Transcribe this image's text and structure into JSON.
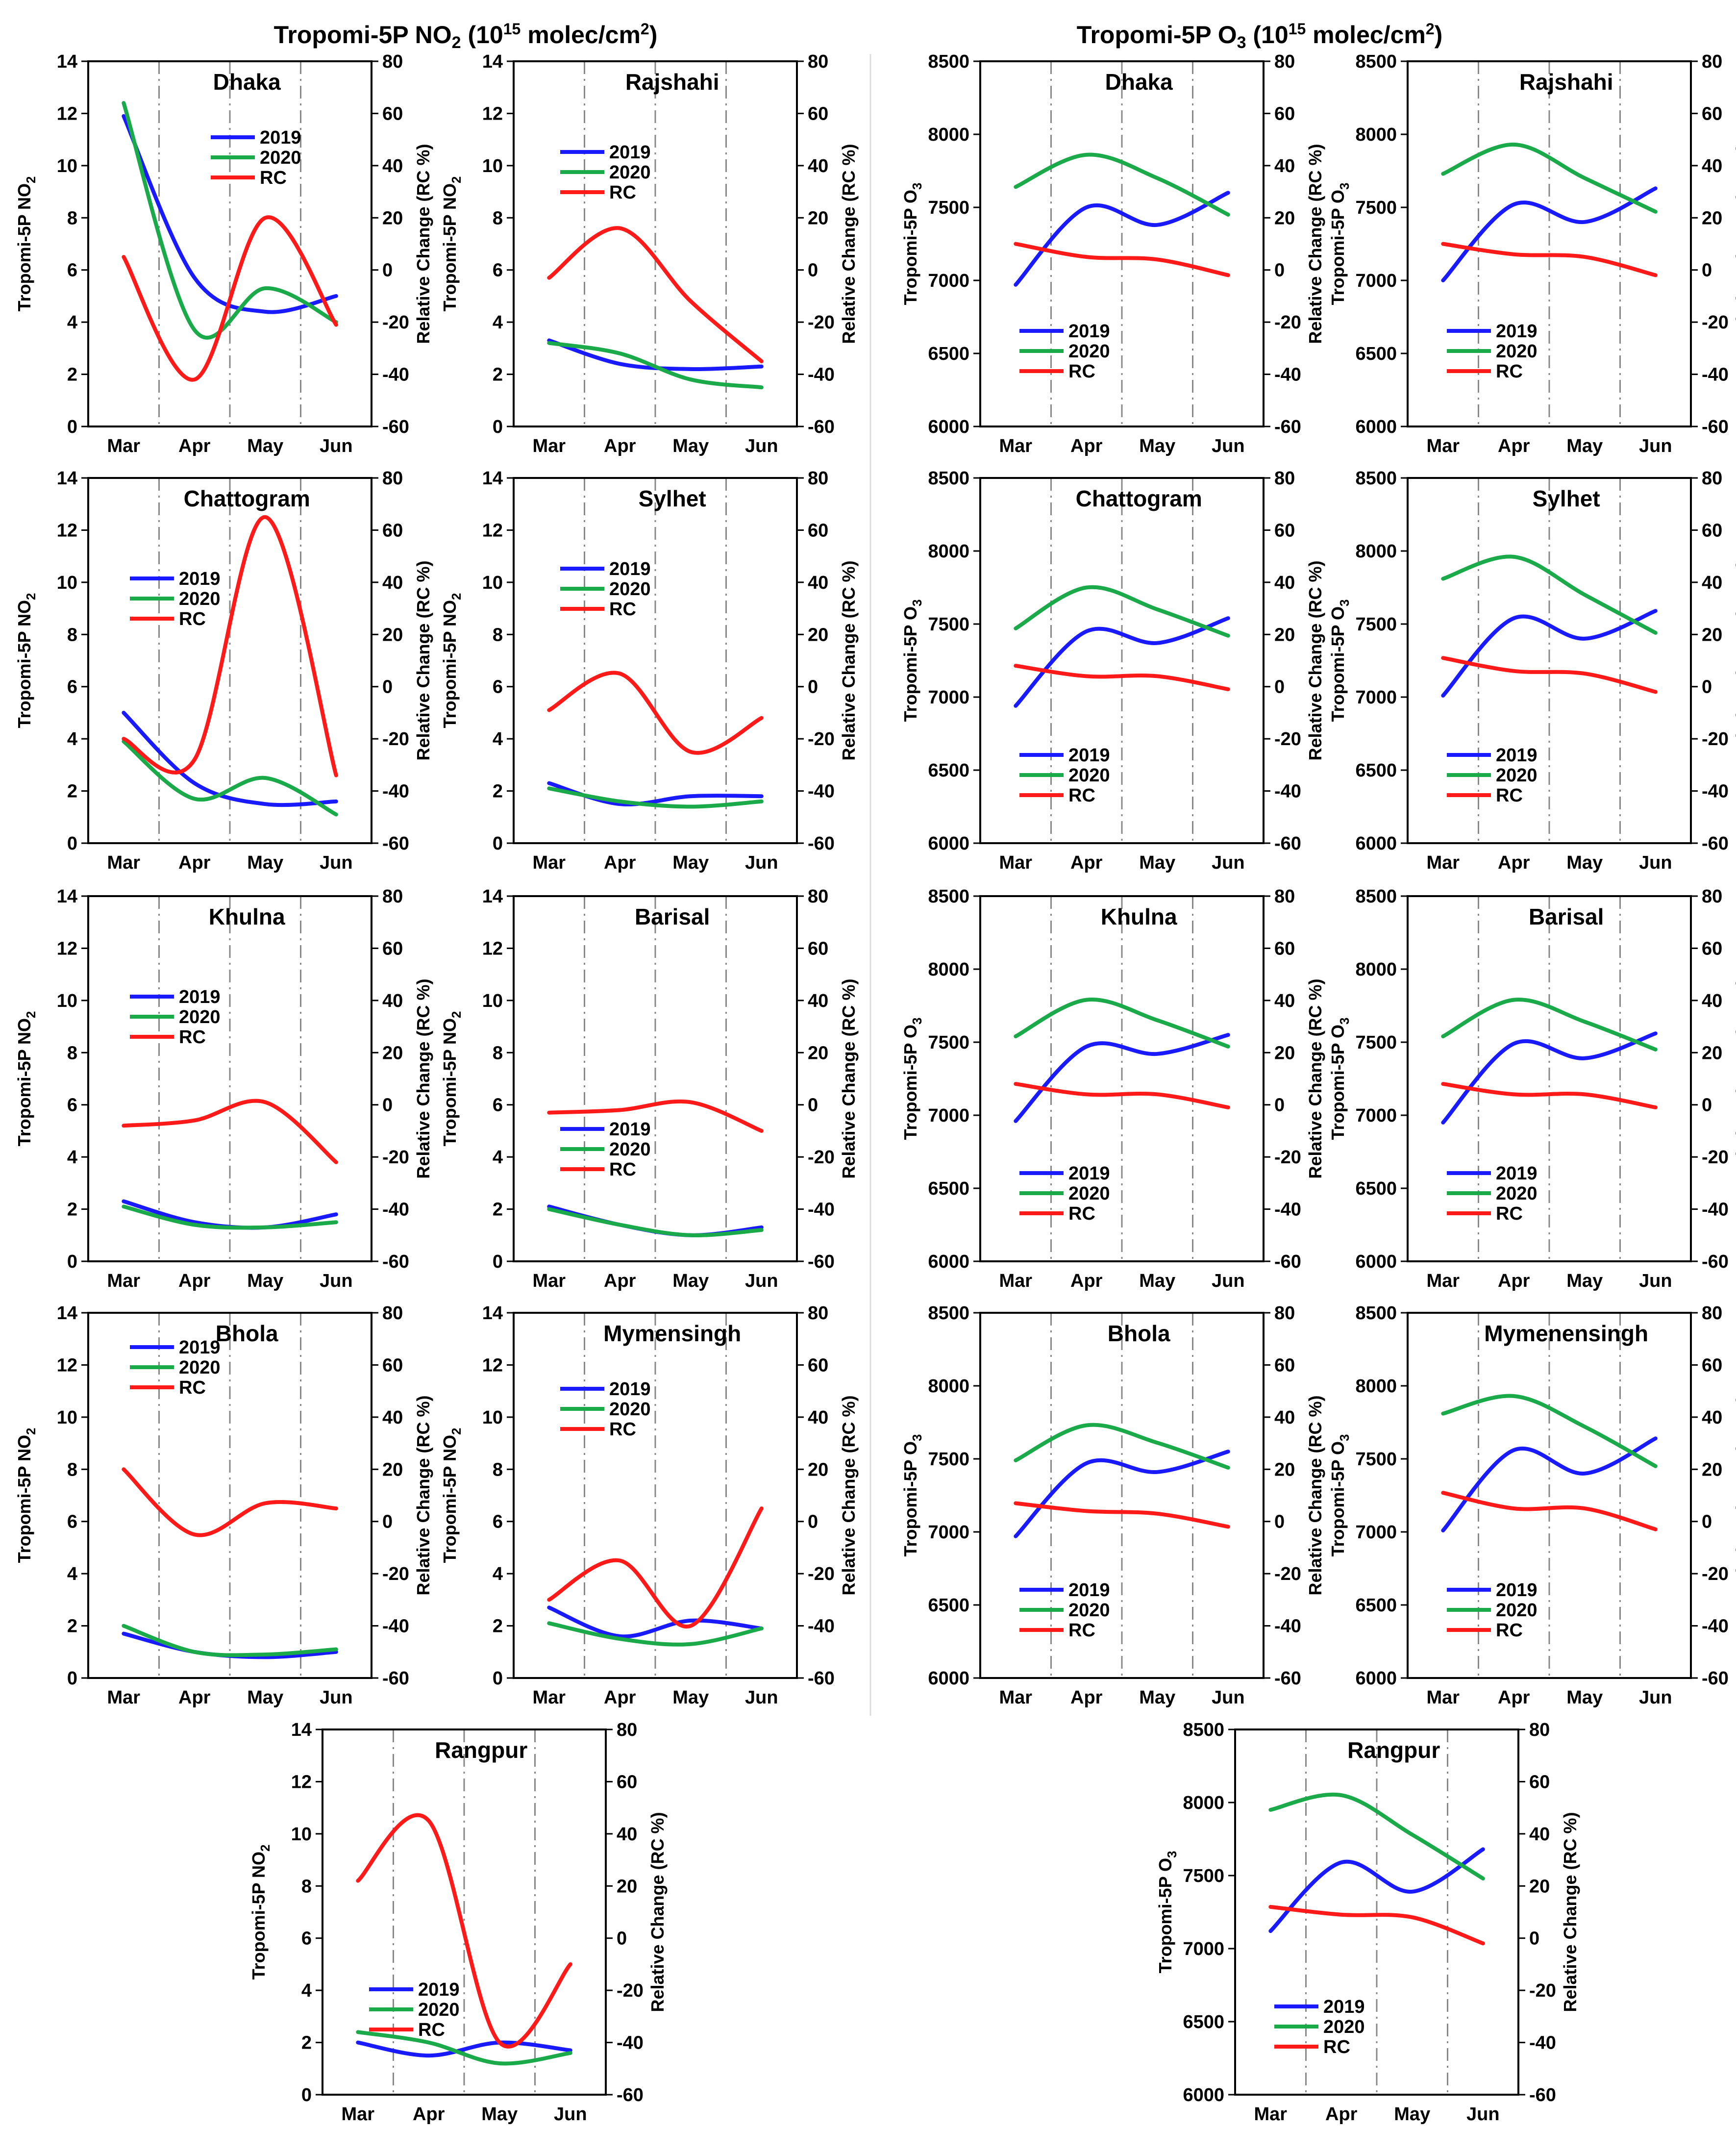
{
  "titles": {
    "no2": {
      "main": "Tropomi-5P NO",
      "sub": "2",
      "tail": " (10",
      "sup": "15",
      "unit": " molec/cm",
      "sup2": "2",
      "close": ")"
    },
    "o3": {
      "main": "Tropomi-5P O",
      "sub": "3",
      "tail": " (10",
      "sup": "15",
      "unit": " molec/cm",
      "sup2": "2",
      "close": ")"
    }
  },
  "axis_text": {
    "no2_ylabel": "Tropomi-5P NO",
    "no2_ylabel_sub": "2",
    "o3_ylabel": "Tropomi-5P O",
    "o3_ylabel_sub": "3",
    "rc_ylabel": "Relative Change (RC %)"
  },
  "months": [
    "Mar",
    "Apr",
    "May",
    "Jun"
  ],
  "legend_names": [
    "2019",
    "2020",
    "RC"
  ],
  "colors": {
    "2019": "#1a1aff",
    "2020": "#1aaa4a",
    "RC": "#ff1a1a"
  },
  "chart_data": [
    {
      "type": "line",
      "group": "no2",
      "title": "Dhaka",
      "x": [
        "Mar",
        "Apr",
        "May",
        "Jun"
      ],
      "ylim": [
        0,
        14
      ],
      "y2lim": [
        -60,
        80
      ],
      "series": [
        {
          "name": "2019",
          "values": [
            11.9,
            5.7,
            4.4,
            5.0
          ]
        },
        {
          "name": "2020",
          "values": [
            12.4,
            3.7,
            5.3,
            4.0
          ]
        },
        {
          "name": "RC",
          "axis": "right",
          "values": [
            5,
            -42,
            20,
            -21
          ]
        }
      ]
    },
    {
      "type": "line",
      "group": "no2",
      "title": "Rajshahi",
      "x": [
        "Mar",
        "Apr",
        "May",
        "Jun"
      ],
      "ylim": [
        0,
        14
      ],
      "y2lim": [
        -60,
        80
      ],
      "series": [
        {
          "name": "2019",
          "values": [
            3.3,
            2.4,
            2.2,
            2.3
          ]
        },
        {
          "name": "2020",
          "values": [
            3.2,
            2.8,
            1.8,
            1.5
          ]
        },
        {
          "name": "RC",
          "axis": "right",
          "values": [
            -3,
            16,
            -12,
            -35
          ]
        }
      ]
    },
    {
      "type": "line",
      "group": "no2",
      "title": "Chattogram",
      "x": [
        "Mar",
        "Apr",
        "May",
        "Jun"
      ],
      "ylim": [
        0,
        14
      ],
      "y2lim": [
        -60,
        80
      ],
      "series": [
        {
          "name": "2019",
          "values": [
            5.0,
            2.3,
            1.5,
            1.6
          ]
        },
        {
          "name": "2020",
          "values": [
            3.9,
            1.7,
            2.5,
            1.1
          ]
        },
        {
          "name": "RC",
          "axis": "right",
          "values": [
            -20,
            -28,
            65,
            -34
          ]
        }
      ]
    },
    {
      "type": "line",
      "group": "no2",
      "title": "Sylhet",
      "x": [
        "Mar",
        "Apr",
        "May",
        "Jun"
      ],
      "ylim": [
        0,
        14
      ],
      "y2lim": [
        -60,
        80
      ],
      "series": [
        {
          "name": "2019",
          "values": [
            2.3,
            1.5,
            1.8,
            1.8
          ]
        },
        {
          "name": "2020",
          "values": [
            2.1,
            1.6,
            1.4,
            1.6
          ]
        },
        {
          "name": "RC",
          "axis": "right",
          "values": [
            -9,
            5,
            -25,
            -12
          ]
        }
      ]
    },
    {
      "type": "line",
      "group": "no2",
      "title": "Khulna",
      "x": [
        "Mar",
        "Apr",
        "May",
        "Jun"
      ],
      "ylim": [
        0,
        14
      ],
      "y2lim": [
        -60,
        80
      ],
      "series": [
        {
          "name": "2019",
          "values": [
            2.3,
            1.5,
            1.3,
            1.8
          ]
        },
        {
          "name": "2020",
          "values": [
            2.1,
            1.4,
            1.3,
            1.5
          ]
        },
        {
          "name": "RC",
          "axis": "right",
          "values": [
            -8,
            -6,
            1,
            -22
          ]
        }
      ]
    },
    {
      "type": "line",
      "group": "no2",
      "title": "Barisal",
      "x": [
        "Mar",
        "Apr",
        "May",
        "Jun"
      ],
      "ylim": [
        0,
        14
      ],
      "y2lim": [
        -60,
        80
      ],
      "series": [
        {
          "name": "2019",
          "values": [
            2.1,
            1.4,
            1.0,
            1.3
          ]
        },
        {
          "name": "2020",
          "values": [
            2.0,
            1.4,
            1.0,
            1.2
          ]
        },
        {
          "name": "RC",
          "axis": "right",
          "values": [
            -3,
            -2,
            1,
            -10
          ]
        }
      ]
    },
    {
      "type": "line",
      "group": "no2",
      "title": "Bhola",
      "x": [
        "Mar",
        "Apr",
        "May",
        "Jun"
      ],
      "ylim": [
        0,
        14
      ],
      "y2lim": [
        -60,
        80
      ],
      "series": [
        {
          "name": "2019",
          "values": [
            1.7,
            1.0,
            0.8,
            1.0
          ]
        },
        {
          "name": "2020",
          "values": [
            2.0,
            1.0,
            0.9,
            1.1
          ]
        },
        {
          "name": "RC",
          "axis": "right",
          "values": [
            20,
            -5,
            7,
            5
          ]
        }
      ]
    },
    {
      "type": "line",
      "group": "no2",
      "title": "Mymensingh",
      "x": [
        "Mar",
        "Apr",
        "May",
        "Jun"
      ],
      "ylim": [
        0,
        14
      ],
      "y2lim": [
        -60,
        80
      ],
      "series": [
        {
          "name": "2019",
          "values": [
            2.7,
            1.6,
            2.2,
            1.9
          ]
        },
        {
          "name": "2020",
          "values": [
            2.1,
            1.5,
            1.3,
            1.9
          ]
        },
        {
          "name": "RC",
          "axis": "right",
          "values": [
            -30,
            -15,
            -40,
            5
          ]
        }
      ]
    },
    {
      "type": "line",
      "group": "no2",
      "title": "Rangpur",
      "x": [
        "Mar",
        "Apr",
        "May",
        "Jun"
      ],
      "ylim": [
        0,
        14
      ],
      "y2lim": [
        -60,
        80
      ],
      "series": [
        {
          "name": "2019",
          "values": [
            2.0,
            1.5,
            2.0,
            1.7
          ]
        },
        {
          "name": "2020",
          "values": [
            2.4,
            2.0,
            1.2,
            1.6
          ]
        },
        {
          "name": "RC",
          "axis": "right",
          "values": [
            22,
            45,
            -40,
            -10
          ]
        }
      ]
    },
    {
      "type": "line",
      "group": "o3",
      "title": "Dhaka",
      "x": [
        "Mar",
        "Apr",
        "May",
        "Jun"
      ],
      "ylim": [
        6000,
        8500
      ],
      "y2lim": [
        -60,
        80
      ],
      "series": [
        {
          "name": "2019",
          "values": [
            6970,
            7500,
            7380,
            7600
          ]
        },
        {
          "name": "2020",
          "values": [
            7640,
            7860,
            7700,
            7450
          ]
        },
        {
          "name": "RC",
          "axis": "right",
          "values": [
            10,
            5,
            4,
            -2
          ]
        }
      ]
    },
    {
      "type": "line",
      "group": "o3",
      "title": "Rajshahi",
      "x": [
        "Mar",
        "Apr",
        "May",
        "Jun"
      ],
      "ylim": [
        6000,
        8500
      ],
      "y2lim": [
        -60,
        80
      ],
      "series": [
        {
          "name": "2019",
          "values": [
            7000,
            7520,
            7400,
            7630
          ]
        },
        {
          "name": "2020",
          "values": [
            7730,
            7930,
            7700,
            7470
          ]
        },
        {
          "name": "RC",
          "axis": "right",
          "values": [
            10,
            6,
            5,
            -2
          ]
        }
      ]
    },
    {
      "type": "line",
      "group": "o3",
      "title": "Chattogram",
      "x": [
        "Mar",
        "Apr",
        "May",
        "Jun"
      ],
      "ylim": [
        6000,
        8500
      ],
      "y2lim": [
        -60,
        80
      ],
      "series": [
        {
          "name": "2019",
          "values": [
            6940,
            7450,
            7370,
            7540
          ]
        },
        {
          "name": "2020",
          "values": [
            7470,
            7750,
            7600,
            7420
          ]
        },
        {
          "name": "RC",
          "axis": "right",
          "values": [
            8,
            4,
            4,
            -1
          ]
        }
      ]
    },
    {
      "type": "line",
      "group": "o3",
      "title": "Sylhet",
      "x": [
        "Mar",
        "Apr",
        "May",
        "Jun"
      ],
      "ylim": [
        6000,
        8500
      ],
      "y2lim": [
        -60,
        80
      ],
      "series": [
        {
          "name": "2019",
          "values": [
            7010,
            7540,
            7400,
            7590
          ]
        },
        {
          "name": "2020",
          "values": [
            7810,
            7960,
            7700,
            7440
          ]
        },
        {
          "name": "RC",
          "axis": "right",
          "values": [
            11,
            6,
            5,
            -2
          ]
        }
      ]
    },
    {
      "type": "line",
      "group": "o3",
      "title": "Khulna",
      "x": [
        "Mar",
        "Apr",
        "May",
        "Jun"
      ],
      "ylim": [
        6000,
        8500
      ],
      "y2lim": [
        -60,
        80
      ],
      "series": [
        {
          "name": "2019",
          "values": [
            6960,
            7470,
            7420,
            7550
          ]
        },
        {
          "name": "2020",
          "values": [
            7540,
            7790,
            7650,
            7470
          ]
        },
        {
          "name": "RC",
          "axis": "right",
          "values": [
            8,
            4,
            4,
            -1
          ]
        }
      ]
    },
    {
      "type": "line",
      "group": "o3",
      "title": "Barisal",
      "x": [
        "Mar",
        "Apr",
        "May",
        "Jun"
      ],
      "ylim": [
        6000,
        8500
      ],
      "y2lim": [
        -60,
        80
      ],
      "series": [
        {
          "name": "2019",
          "values": [
            6950,
            7490,
            7390,
            7560
          ]
        },
        {
          "name": "2020",
          "values": [
            7540,
            7790,
            7640,
            7450
          ]
        },
        {
          "name": "RC",
          "axis": "right",
          "values": [
            8,
            4,
            4,
            -1
          ]
        }
      ]
    },
    {
      "type": "line",
      "group": "o3",
      "title": "Bhola",
      "x": [
        "Mar",
        "Apr",
        "May",
        "Jun"
      ],
      "ylim": [
        6000,
        8500
      ],
      "y2lim": [
        -60,
        80
      ],
      "series": [
        {
          "name": "2019",
          "values": [
            6970,
            7470,
            7410,
            7550
          ]
        },
        {
          "name": "2020",
          "values": [
            7490,
            7730,
            7610,
            7440
          ]
        },
        {
          "name": "RC",
          "axis": "right",
          "values": [
            7,
            4,
            3,
            -2
          ]
        }
      ]
    },
    {
      "type": "line",
      "group": "o3",
      "title": "Mymenensingh",
      "x": [
        "Mar",
        "Apr",
        "May",
        "Jun"
      ],
      "ylim": [
        6000,
        8500
      ],
      "y2lim": [
        -60,
        80
      ],
      "series": [
        {
          "name": "2019",
          "values": [
            7010,
            7560,
            7400,
            7640
          ]
        },
        {
          "name": "2020",
          "values": [
            7810,
            7930,
            7720,
            7450
          ]
        },
        {
          "name": "RC",
          "axis": "right",
          "values": [
            11,
            5,
            5,
            -3
          ]
        }
      ]
    },
    {
      "type": "line",
      "group": "o3",
      "title": "Rangpur",
      "x": [
        "Mar",
        "Apr",
        "May",
        "Jun"
      ],
      "ylim": [
        6000,
        8500
      ],
      "y2lim": [
        -60,
        80
      ],
      "series": [
        {
          "name": "2019",
          "values": [
            7120,
            7590,
            7390,
            7680
          ]
        },
        {
          "name": "2020",
          "values": [
            7950,
            8050,
            7780,
            7480
          ]
        },
        {
          "name": "RC",
          "axis": "right",
          "values": [
            12,
            9,
            8,
            -2
          ]
        }
      ]
    }
  ]
}
